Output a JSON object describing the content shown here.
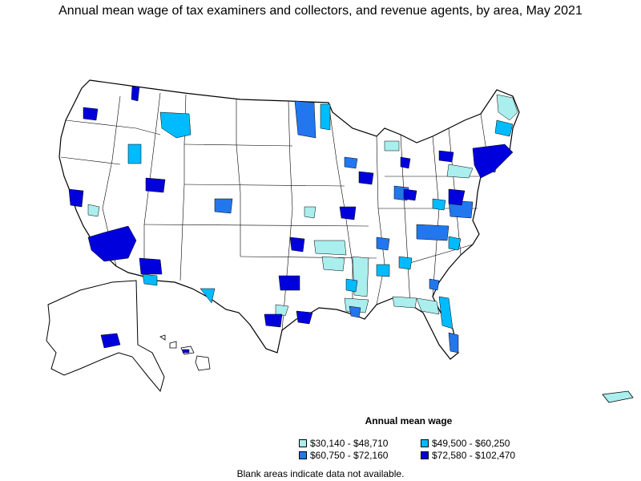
{
  "title": "Annual mean wage of tax examiners and collectors, and revenue agents, by area, May 2021",
  "legend": {
    "title": "Annual mean wage",
    "items": [
      {
        "label": "$30,140 - $48,710",
        "color": "#aaeeee"
      },
      {
        "label": "$49,500 - $60,250",
        "color": "#00bbff"
      },
      {
        "label": "$60,750 - $72,160",
        "color": "#2277ee"
      },
      {
        "label": "$72,580 - $102,470",
        "color": "#0000dd"
      }
    ]
  },
  "note": "Blank areas indicate data not available."
}
